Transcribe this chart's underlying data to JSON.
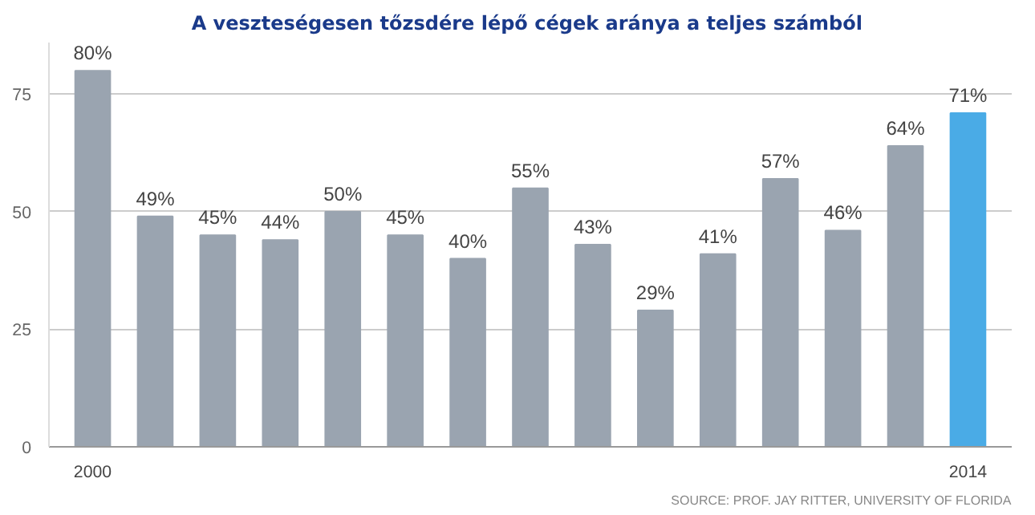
{
  "chart_data": {
    "type": "bar",
    "title": "A veszteségesen tőzsdére lépő cégek aránya  a teljes számból",
    "categories": [
      "2000",
      null,
      null,
      null,
      null,
      null,
      null,
      null,
      null,
      null,
      null,
      null,
      null,
      null,
      "2014"
    ],
    "values": [
      80,
      49,
      45,
      44,
      50,
      45,
      40,
      55,
      43,
      29,
      41,
      57,
      46,
      64,
      71
    ],
    "value_labels": [
      "80%",
      "49%",
      "45%",
      "44%",
      "50%",
      "45%",
      "40%",
      "55%",
      "43%",
      "29%",
      "41%",
      "57%",
      "46%",
      "64%",
      "71%"
    ],
    "colors": [
      "#9aa4b0",
      "#9aa4b0",
      "#9aa4b0",
      "#9aa4b0",
      "#9aa4b0",
      "#9aa4b0",
      "#9aa4b0",
      "#9aa4b0",
      "#9aa4b0",
      "#9aa4b0",
      "#9aa4b0",
      "#9aa4b0",
      "#9aa4b0",
      "#9aa4b0",
      "#4aabe6"
    ],
    "ylim": [
      0,
      86
    ],
    "yticks": [
      0,
      25,
      50,
      75
    ],
    "grid": "y",
    "annotations": [
      "SOURCE: PROF. JAY RITTER, UNIVERSITY OF FLORIDA"
    ]
  }
}
